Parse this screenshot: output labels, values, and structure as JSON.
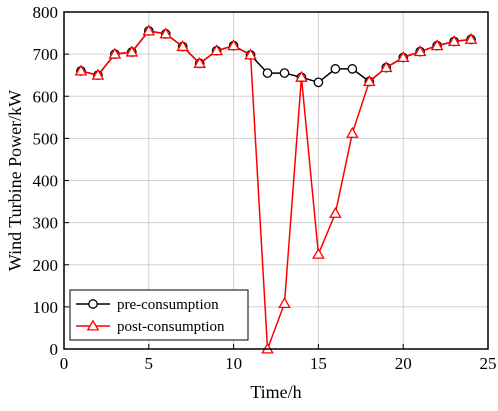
{
  "chart_data": {
    "type": "line",
    "xlabel": "Time/h",
    "ylabel": "Wind Turbine Power/kW",
    "xlim": [
      0,
      25
    ],
    "ylim": [
      0,
      800
    ],
    "xticks": [
      "0",
      "5",
      "10",
      "15",
      "20",
      "25"
    ],
    "yticks": [
      "0",
      "100",
      "200",
      "300",
      "400",
      "500",
      "600",
      "700",
      "800"
    ],
    "grid": true,
    "legend_position": "bottom-left",
    "series": [
      {
        "name": "pre-consumption",
        "color": "#000000",
        "marker": "circle",
        "x": [
          1,
          2,
          3,
          4,
          5,
          6,
          7,
          8,
          9,
          10,
          11,
          12,
          13,
          14,
          15,
          16,
          17,
          18,
          19,
          20,
          21,
          22,
          23,
          24
        ],
        "y": [
          660,
          650,
          700,
          705,
          755,
          748,
          718,
          678,
          708,
          720,
          698,
          655,
          655,
          645,
          633,
          665,
          665,
          635,
          668,
          692,
          706,
          720,
          730,
          735
        ]
      },
      {
        "name": "post-consumption",
        "color": "#ff0000",
        "marker": "triangle",
        "x": [
          1,
          2,
          3,
          4,
          5,
          6,
          7,
          8,
          9,
          10,
          11,
          12,
          13,
          14,
          15,
          16,
          17,
          18,
          19,
          20,
          21,
          22,
          23,
          24
        ],
        "y": [
          660,
          650,
          700,
          705,
          755,
          748,
          718,
          678,
          708,
          720,
          698,
          0,
          108,
          645,
          225,
          322,
          512,
          635,
          668,
          692,
          706,
          720,
          730,
          735
        ]
      }
    ]
  }
}
